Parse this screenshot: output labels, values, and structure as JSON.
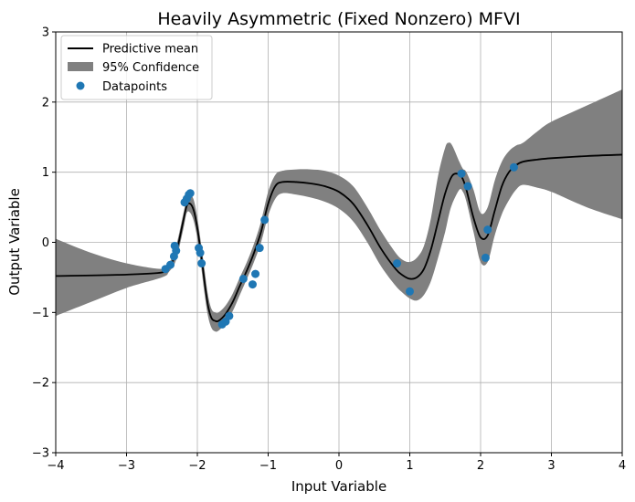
{
  "chart_data": {
    "type": "line",
    "title": "Heavily Asymmetric (Fixed Nonzero) MFVI",
    "xlabel": "Input Variable",
    "ylabel": "Output Variable",
    "xlim": [
      -4,
      4
    ],
    "ylim": [
      -3,
      3
    ],
    "xticks": [
      -4,
      -3,
      -2,
      -1,
      0,
      1,
      2,
      3,
      4
    ],
    "yticks": [
      -3,
      -2,
      -1,
      0,
      1,
      2,
      3
    ],
    "grid": true,
    "legend_position": "top-left",
    "legend": [
      "Predictive mean",
      "95% Confidence",
      "Datapoints"
    ],
    "colors": {
      "mean": "#000000",
      "band": "#808080",
      "points": "#1f77b4",
      "grid": "#b0b0b0"
    },
    "mean": {
      "x": [
        -4.0,
        -3.0,
        -2.5,
        -2.4,
        -2.3,
        -2.2,
        -2.15,
        -2.1,
        -2.05,
        -2.0,
        -1.95,
        -1.9,
        -1.85,
        -1.8,
        -1.75,
        -1.7,
        -1.6,
        -1.5,
        -1.4,
        -1.3,
        -1.2,
        -1.1,
        -1.0,
        -0.9,
        -0.8,
        -0.6,
        -0.4,
        -0.2,
        0.0,
        0.2,
        0.4,
        0.6,
        0.8,
        0.9,
        1.0,
        1.1,
        1.2,
        1.3,
        1.4,
        1.5,
        1.6,
        1.7,
        1.75,
        1.8,
        1.9,
        2.0,
        2.1,
        2.2,
        2.3,
        2.4,
        2.5,
        2.6,
        2.8,
        3.0,
        3.5,
        4.0
      ],
      "y": [
        -0.48,
        -0.46,
        -0.43,
        -0.35,
        -0.15,
        0.3,
        0.52,
        0.55,
        0.45,
        0.2,
        -0.15,
        -0.55,
        -0.9,
        -1.08,
        -1.12,
        -1.12,
        -1.02,
        -0.85,
        -0.62,
        -0.4,
        -0.15,
        0.15,
        0.55,
        0.8,
        0.86,
        0.86,
        0.84,
        0.8,
        0.72,
        0.55,
        0.25,
        -0.1,
        -0.38,
        -0.47,
        -0.52,
        -0.5,
        -0.38,
        -0.1,
        0.3,
        0.7,
        0.95,
        0.97,
        0.9,
        0.75,
        0.35,
        0.07,
        0.1,
        0.45,
        0.8,
        1.0,
        1.1,
        1.15,
        1.18,
        1.2,
        1.23,
        1.25
      ]
    },
    "confidence_upper": {
      "x": [
        -4.0,
        -3.5,
        -3.0,
        -2.5,
        -2.4,
        -2.3,
        -2.2,
        -2.15,
        -2.1,
        -2.05,
        -2.0,
        -1.95,
        -1.9,
        -1.85,
        -1.8,
        -1.75,
        -1.7,
        -1.6,
        -1.5,
        -1.4,
        -1.3,
        -1.2,
        -1.1,
        -1.0,
        -0.9,
        -0.8,
        -0.6,
        -0.4,
        -0.2,
        0.0,
        0.2,
        0.4,
        0.6,
        0.8,
        0.9,
        1.0,
        1.1,
        1.2,
        1.3,
        1.4,
        1.5,
        1.55,
        1.6,
        1.7,
        1.75,
        1.8,
        1.9,
        2.0,
        2.1,
        2.2,
        2.3,
        2.4,
        2.5,
        2.6,
        2.8,
        3.0,
        3.5,
        4.0
      ],
      "y": [
        0.05,
        -0.15,
        -0.3,
        -0.38,
        -0.3,
        -0.05,
        0.4,
        0.62,
        0.68,
        0.6,
        0.35,
        0.0,
        -0.38,
        -0.75,
        -0.95,
        -1.0,
        -1.0,
        -0.9,
        -0.73,
        -0.5,
        -0.28,
        -0.02,
        0.3,
        0.72,
        0.96,
        1.02,
        1.04,
        1.04,
        1.02,
        0.95,
        0.8,
        0.5,
        0.15,
        -0.15,
        -0.25,
        -0.28,
        -0.22,
        -0.05,
        0.35,
        0.95,
        1.35,
        1.42,
        1.38,
        1.15,
        1.05,
        1.0,
        0.75,
        0.42,
        0.5,
        0.88,
        1.15,
        1.3,
        1.38,
        1.42,
        1.58,
        1.72,
        1.95,
        2.18
      ]
    },
    "confidence_lower": {
      "x": [
        -4.0,
        -3.5,
        -3.0,
        -2.5,
        -2.4,
        -2.3,
        -2.2,
        -2.15,
        -2.1,
        -2.05,
        -2.0,
        -1.95,
        -1.9,
        -1.85,
        -1.8,
        -1.75,
        -1.7,
        -1.6,
        -1.5,
        -1.4,
        -1.3,
        -1.2,
        -1.1,
        -1.0,
        -0.9,
        -0.8,
        -0.6,
        -0.4,
        -0.2,
        0.0,
        0.2,
        0.4,
        0.6,
        0.8,
        0.9,
        1.0,
        1.1,
        1.2,
        1.3,
        1.4,
        1.5,
        1.55,
        1.6,
        1.7,
        1.75,
        1.8,
        1.9,
        2.0,
        2.1,
        2.2,
        2.3,
        2.4,
        2.5,
        2.6,
        2.8,
        3.0,
        3.5,
        4.0
      ],
      "y": [
        -1.05,
        -0.85,
        -0.65,
        -0.5,
        -0.42,
        -0.25,
        0.18,
        0.42,
        0.42,
        0.3,
        0.05,
        -0.32,
        -0.72,
        -1.05,
        -1.22,
        -1.27,
        -1.26,
        -1.15,
        -0.98,
        -0.75,
        -0.52,
        -0.28,
        0.0,
        0.38,
        0.62,
        0.7,
        0.68,
        0.64,
        0.58,
        0.48,
        0.3,
        0.0,
        -0.35,
        -0.62,
        -0.72,
        -0.8,
        -0.83,
        -0.75,
        -0.55,
        -0.22,
        0.15,
        0.38,
        0.55,
        0.75,
        0.72,
        0.58,
        0.15,
        -0.28,
        -0.28,
        0.1,
        0.4,
        0.6,
        0.75,
        0.82,
        0.78,
        0.72,
        0.5,
        0.33
      ]
    },
    "datapoints": {
      "x": [
        -2.45,
        -2.38,
        -2.33,
        -2.32,
        -2.3,
        -2.18,
        -2.15,
        -2.12,
        -2.1,
        -1.98,
        -1.96,
        -1.94,
        -1.65,
        -1.6,
        -1.55,
        -1.35,
        -1.22,
        -1.18,
        -1.12,
        -1.05,
        0.82,
        1.0,
        1.73,
        1.82,
        2.07,
        2.1,
        2.47
      ],
      "y": [
        -0.38,
        -0.32,
        -0.2,
        -0.05,
        -0.12,
        0.57,
        0.62,
        0.68,
        0.7,
        -0.08,
        -0.15,
        -0.3,
        -1.17,
        -1.13,
        -1.05,
        -0.52,
        -0.6,
        -0.45,
        -0.08,
        0.32,
        -0.3,
        -0.7,
        0.98,
        0.8,
        -0.22,
        0.18,
        1.07
      ]
    }
  }
}
